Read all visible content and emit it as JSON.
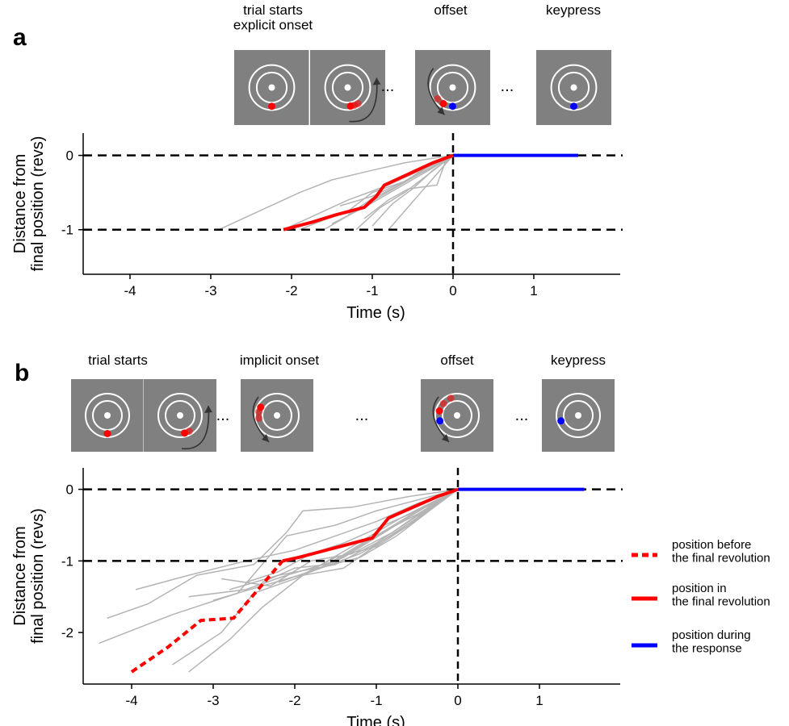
{
  "panels": [
    {
      "panel_label": "a",
      "phase_labels": [
        "trial starts\nexplicit onset",
        "offset",
        "keypress"
      ],
      "ellipses": [
        "...",
        "..."
      ],
      "frames": [
        {
          "red_dots": [
            [
              0,
              1
            ]
          ],
          "blue_dots": [],
          "arrow": ""
        },
        {
          "red_dots": [
            [
              0.55,
              0.86
            ],
            [
              0.35,
              0.95
            ],
            [
              0.15,
              0.99
            ]
          ],
          "blue_dots": [],
          "arrow": "ccw"
        },
        {
          "red_dots": [
            [
              -0.8,
              0.6
            ],
            [
              -0.5,
              0.86
            ]
          ],
          "blue_dots": [
            [
              0,
              1
            ]
          ],
          "arrow": "ccw-left"
        },
        {
          "red_dots": [],
          "blue_dots": [
            [
              0,
              1
            ]
          ],
          "arrow": ""
        }
      ]
    },
    {
      "panel_label": "b",
      "phase_labels": [
        "trial starts",
        "implicit onset",
        "offset",
        "keypress"
      ],
      "ellipses": [
        "...",
        "...",
        "..."
      ],
      "frames": [
        {
          "red_dots": [
            [
              0,
              1
            ]
          ],
          "blue_dots": [],
          "arrow": ""
        },
        {
          "red_dots": [
            [
              0.5,
              0.87
            ],
            [
              0.25,
              0.97
            ]
          ],
          "blue_dots": [],
          "arrow": "ccw"
        },
        {
          "red_dots": [
            [
              -1,
              0.15
            ],
            [
              -1,
              -0.2
            ],
            [
              -0.9,
              -0.45
            ]
          ],
          "blue_dots": [],
          "arrow": "ccw-left"
        },
        {
          "red_dots": [
            [
              -0.35,
              -0.95
            ],
            [
              -0.75,
              -0.65
            ],
            [
              -0.97,
              -0.25
            ]
          ],
          "blue_dots": [
            [
              -0.95,
              0.3
            ]
          ],
          "arrow": "ccw-left"
        },
        {
          "red_dots": [],
          "blue_dots": [
            [
              -0.95,
              0.3
            ]
          ],
          "arrow": ""
        }
      ]
    }
  ],
  "legend": [
    {
      "label": "position before\nthe final revolution",
      "color": "#ff0000",
      "dash": true
    },
    {
      "label": "position in\nthe final revolution",
      "color": "#ff0000",
      "dash": false
    },
    {
      "label": "position during\nthe response",
      "color": "#0000ff",
      "dash": false
    }
  ],
  "chart_data": [
    {
      "type": "line",
      "panel": "a",
      "xlabel": "Time (s)",
      "ylabel": "Distance from\nfinal position (revs)",
      "xlim": [
        -4.45,
        2.05
      ],
      "ylim": [
        -1.6,
        0.3
      ],
      "xticks": [
        -4,
        -3,
        -2,
        -1,
        0,
        1
      ],
      "yticks": [
        0,
        -1
      ],
      "reference_lines": {
        "y": [
          0,
          -1
        ],
        "x": [
          0
        ]
      },
      "colors": {
        "gray": "#b4b4b4",
        "final_revolution": "#ff0000",
        "response": "#0000ff"
      },
      "gray_traces": [
        [
          [
            -2.9,
            -1
          ],
          [
            -2.3,
            -0.7
          ],
          [
            -1.9,
            -0.5
          ],
          [
            -1.5,
            -0.33
          ],
          [
            -1.0,
            -0.2
          ],
          [
            -0.6,
            -0.1
          ],
          [
            -0.2,
            -0.03
          ],
          [
            0,
            0
          ]
        ],
        [
          [
            -2.1,
            -1
          ],
          [
            -1.7,
            -0.8
          ],
          [
            -1.3,
            -0.6
          ],
          [
            -0.8,
            -0.4
          ],
          [
            -0.4,
            -0.2
          ],
          [
            0,
            0
          ]
        ],
        [
          [
            -1.9,
            -1
          ],
          [
            -1.6,
            -0.87
          ],
          [
            -1.3,
            -0.75
          ],
          [
            -1.0,
            -0.5
          ],
          [
            -0.6,
            -0.35
          ],
          [
            -0.2,
            -0.12
          ],
          [
            0,
            0
          ]
        ],
        [
          [
            -1.6,
            -1
          ],
          [
            -1.2,
            -0.75
          ],
          [
            -0.9,
            -0.55
          ],
          [
            -0.5,
            -0.3
          ],
          [
            0,
            0
          ]
        ],
        [
          [
            -1.5,
            -0.92
          ],
          [
            -1.1,
            -0.7
          ],
          [
            -0.7,
            -0.45
          ],
          [
            -0.3,
            -0.2
          ],
          [
            0,
            0
          ]
        ],
        [
          [
            -1.2,
            -1
          ],
          [
            -0.9,
            -0.7
          ],
          [
            -0.6,
            -0.5
          ],
          [
            -0.3,
            -0.25
          ],
          [
            0,
            0
          ]
        ],
        [
          [
            -1.0,
            -0.95
          ],
          [
            -0.75,
            -0.65
          ],
          [
            -0.5,
            -0.45
          ],
          [
            -0.25,
            -0.2
          ],
          [
            0,
            0
          ]
        ],
        [
          [
            -0.8,
            -1
          ],
          [
            -0.6,
            -0.75
          ],
          [
            -0.4,
            -0.5
          ],
          [
            -0.2,
            -0.25
          ],
          [
            0,
            0
          ]
        ],
        [
          [
            -1.3,
            -0.8
          ],
          [
            -1.0,
            -0.58
          ],
          [
            -0.7,
            -0.42
          ],
          [
            -0.35,
            -0.18
          ],
          [
            0,
            0
          ]
        ],
        [
          [
            -1.1,
            -0.85
          ],
          [
            -0.8,
            -0.6
          ],
          [
            -0.55,
            -0.45
          ],
          [
            -0.2,
            -0.4
          ],
          [
            -0.1,
            -0.1
          ],
          [
            0,
            0
          ]
        ],
        [
          [
            -1.4,
            -0.68
          ],
          [
            -1.0,
            -0.55
          ],
          [
            -0.6,
            -0.35
          ],
          [
            -0.3,
            -0.15
          ],
          [
            0,
            0
          ]
        ]
      ],
      "red_final_revolution": [
        [
          -2.1,
          -1
        ],
        [
          -1.75,
          -0.9
        ],
        [
          -1.45,
          -0.8
        ],
        [
          -1.1,
          -0.7
        ],
        [
          -0.95,
          -0.55
        ],
        [
          -0.85,
          -0.4
        ],
        [
          -0.55,
          -0.25
        ],
        [
          -0.25,
          -0.1
        ],
        [
          0,
          0
        ]
      ],
      "blue_response": [
        [
          0,
          0
        ],
        [
          1.55,
          0
        ]
      ]
    },
    {
      "type": "line",
      "panel": "b",
      "xlabel": "Time (s)",
      "ylabel": "Distance from\nfinal position (revs)",
      "xlim": [
        -4.45,
        2.05
      ],
      "ylim": [
        -2.72,
        0.3
      ],
      "xticks": [
        -4,
        -3,
        -2,
        -1,
        0,
        1
      ],
      "yticks": [
        0,
        -1,
        -2
      ],
      "reference_lines": {
        "y": [
          0,
          -1
        ],
        "x": [
          0
        ]
      },
      "colors": {
        "gray": "#b4b4b4",
        "final_revolution": "#ff0000",
        "response": "#0000ff"
      },
      "gray_traces": [
        [
          [
            -4.4,
            -2.15
          ],
          [
            -3.5,
            -1.75
          ],
          [
            -2.7,
            -1.45
          ],
          [
            -2.1,
            -0.65
          ],
          [
            -1.5,
            -0.5
          ],
          [
            -1.0,
            -0.3
          ],
          [
            -0.5,
            -0.15
          ],
          [
            0,
            0
          ]
        ],
        [
          [
            -4.3,
            -1.8
          ],
          [
            -3.8,
            -1.6
          ],
          [
            -3.2,
            -1.2
          ],
          [
            -2.5,
            -1.05
          ],
          [
            -2.1,
            -0.6
          ],
          [
            -1.9,
            -0.3
          ],
          [
            -1.3,
            -0.25
          ],
          [
            -0.6,
            -0.1
          ],
          [
            0,
            0
          ]
        ],
        [
          [
            -3.95,
            -1.4
          ],
          [
            -3.3,
            -1.2
          ],
          [
            -2.6,
            -1.0
          ],
          [
            -2.0,
            -0.85
          ],
          [
            -1.5,
            -0.65
          ],
          [
            -1.0,
            -0.45
          ],
          [
            -0.5,
            -0.2
          ],
          [
            0,
            0
          ]
        ],
        [
          [
            -3.3,
            -2.55
          ],
          [
            -2.8,
            -2.1
          ],
          [
            -2.4,
            -1.65
          ],
          [
            -1.9,
            -1.2
          ],
          [
            -1.3,
            -0.8
          ],
          [
            -0.7,
            -0.4
          ],
          [
            0,
            0
          ]
        ],
        [
          [
            -3.5,
            -2.45
          ],
          [
            -2.9,
            -2.0
          ],
          [
            -2.5,
            -1.45
          ],
          [
            -2.0,
            -1.25
          ],
          [
            -1.4,
            -0.95
          ],
          [
            -0.9,
            -0.6
          ],
          [
            -0.4,
            -0.25
          ],
          [
            0,
            0
          ]
        ],
        [
          [
            -3.0,
            -1.55
          ],
          [
            -2.4,
            -1.35
          ],
          [
            -1.8,
            -1.15
          ],
          [
            -1.2,
            -0.9
          ],
          [
            -0.6,
            -0.5
          ],
          [
            0,
            0
          ]
        ],
        [
          [
            -2.6,
            -1.3
          ],
          [
            -2.2,
            -1.15
          ],
          [
            -1.8,
            -0.9
          ],
          [
            -1.4,
            -0.75
          ],
          [
            -0.9,
            -0.5
          ],
          [
            -0.4,
            -0.25
          ],
          [
            0,
            0
          ]
        ],
        [
          [
            -2.4,
            -1.3
          ],
          [
            -2.0,
            -1.1
          ],
          [
            -1.6,
            -1.05
          ],
          [
            -1.1,
            -0.7
          ],
          [
            -0.5,
            -0.35
          ],
          [
            0,
            0
          ]
        ],
        [
          [
            -2.9,
            -1.25
          ],
          [
            -2.3,
            -1.35
          ],
          [
            -1.8,
            -1.0
          ],
          [
            -1.3,
            -0.9
          ],
          [
            -0.8,
            -0.6
          ],
          [
            -0.3,
            -0.2
          ],
          [
            0,
            0
          ]
        ],
        [
          [
            -2.8,
            -1.4
          ],
          [
            -2.2,
            -1.2
          ],
          [
            -1.5,
            -1.05
          ],
          [
            -1.0,
            -0.75
          ],
          [
            -0.6,
            -0.45
          ],
          [
            -0.2,
            -0.15
          ],
          [
            0,
            0
          ]
        ],
        [
          [
            -2.2,
            -1.3
          ],
          [
            -1.7,
            -1.1
          ],
          [
            -1.2,
            -0.95
          ],
          [
            -0.75,
            -0.65
          ],
          [
            -0.35,
            -0.3
          ],
          [
            0,
            0
          ]
        ],
        [
          [
            -2.0,
            -1.25
          ],
          [
            -1.5,
            -0.95
          ],
          [
            -1.0,
            -0.8
          ],
          [
            -0.6,
            -0.5
          ],
          [
            -0.25,
            -0.15
          ],
          [
            0,
            0
          ]
        ],
        [
          [
            -1.9,
            -1.2
          ],
          [
            -1.4,
            -1.1
          ],
          [
            -0.9,
            -0.7
          ],
          [
            -0.5,
            -0.4
          ],
          [
            0,
            0
          ]
        ],
        [
          [
            -3.3,
            -1.5
          ],
          [
            -2.6,
            -1.4
          ],
          [
            -2.1,
            -1.2
          ],
          [
            -1.5,
            -1.0
          ],
          [
            -1.0,
            -0.65
          ],
          [
            -0.5,
            -0.3
          ],
          [
            0,
            0
          ]
        ]
      ],
      "red_before_final_revolution": [
        [
          -4.0,
          -2.55
        ],
        [
          -3.55,
          -2.2
        ],
        [
          -3.15,
          -1.83
        ],
        [
          -2.75,
          -1.8
        ],
        [
          -2.15,
          -1.0
        ]
      ],
      "red_final_revolution": [
        [
          -2.15,
          -1.0
        ],
        [
          -1.95,
          -0.95
        ],
        [
          -1.05,
          -0.68
        ],
        [
          -0.85,
          -0.4
        ],
        [
          -0.55,
          -0.25
        ],
        [
          -0.25,
          -0.1
        ],
        [
          0,
          0
        ]
      ],
      "blue_response": [
        [
          0,
          0
        ],
        [
          1.55,
          0
        ]
      ]
    }
  ]
}
